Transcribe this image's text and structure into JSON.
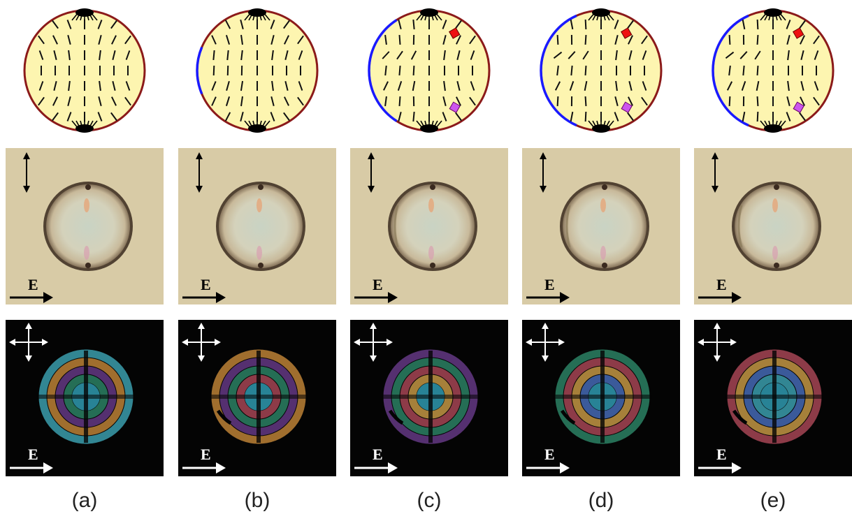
{
  "figure": {
    "field_label": "E",
    "panels": [
      {
        "caption": "(a)",
        "blue_arc": 0,
        "defects": false
      },
      {
        "caption": "(b)",
        "blue_arc": 0.4,
        "defects": false
      },
      {
        "caption": "(c)",
        "blue_arc": 1.0,
        "defects": true
      },
      {
        "caption": "(d)",
        "blue_arc": 1.15,
        "defects": true
      },
      {
        "caption": "(e)",
        "blue_arc": 1.15,
        "defects": true
      }
    ],
    "colors": {
      "droplet_fill": "#fdf5b0",
      "droplet_border": "#8b1a1a",
      "anchoring_arc": "#1a1aff",
      "defect_red": "#ee1111",
      "defect_violet": "#cc55ee",
      "bright_background": "#d8cba6",
      "dark_background": "#040404"
    }
  }
}
